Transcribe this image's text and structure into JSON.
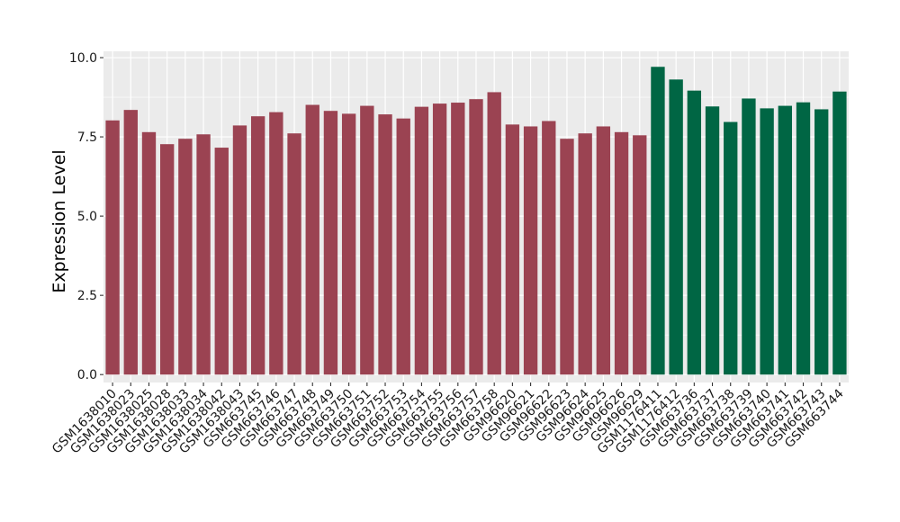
{
  "chart_data": {
    "type": "bar",
    "title": "",
    "xlabel": "",
    "ylabel": "Expression Level",
    "ylim": [
      -0.25,
      10.2
    ],
    "y_ticks": [
      0.0,
      2.5,
      5.0,
      7.5,
      10.0
    ],
    "y_tick_labels": [
      "0.0",
      "2.5",
      "5.0",
      "7.5",
      "10.0"
    ],
    "grid": true,
    "legend": "none",
    "categories": [
      "GSM1638010",
      "GSM1638023",
      "GSM1638025",
      "GSM1638028",
      "GSM1638033",
      "GSM1638034",
      "GSM1638042",
      "GSM1638043",
      "GSM663745",
      "GSM663746",
      "GSM663747",
      "GSM663748",
      "GSM663749",
      "GSM663750",
      "GSM663751",
      "GSM663752",
      "GSM663753",
      "GSM663754",
      "GSM663755",
      "GSM663756",
      "GSM663757",
      "GSM663758",
      "GSM96620",
      "GSM96621",
      "GSM96622",
      "GSM96623",
      "GSM96624",
      "GSM96625",
      "GSM96626",
      "GSM96629",
      "GSM1176411",
      "GSM1176412",
      "GSM663736",
      "GSM663737",
      "GSM663738",
      "GSM663739",
      "GSM663740",
      "GSM663741",
      "GSM663742",
      "GSM663743",
      "GSM663744"
    ],
    "values": [
      8.02,
      8.35,
      7.65,
      7.27,
      7.44,
      7.58,
      7.16,
      7.86,
      8.15,
      8.28,
      7.61,
      8.51,
      8.32,
      8.23,
      8.48,
      8.21,
      8.08,
      8.45,
      8.55,
      8.58,
      8.69,
      8.91,
      7.89,
      7.83,
      8.0,
      7.44,
      7.61,
      7.83,
      7.65,
      7.55,
      9.71,
      9.31,
      8.96,
      8.46,
      7.97,
      8.71,
      8.4,
      8.48,
      8.59,
      8.37,
      8.93
    ],
    "group_sizes": [
      30,
      11
    ],
    "colors": {
      "group_1": "#9b4352",
      "group_2": "#006644",
      "panel_background": "#ebebeb",
      "grid_line": "#ffffff"
    }
  }
}
